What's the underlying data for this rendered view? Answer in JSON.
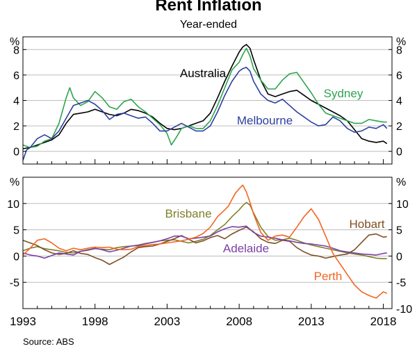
{
  "title": "Rent Inflation",
  "subtitle": "Year-ended",
  "source": "Source:   ABS",
  "chart_data": [
    {
      "type": "line",
      "panel": "top",
      "unit_label": "%",
      "ylim": [
        -1,
        9
      ],
      "yticks": [
        0,
        2,
        4,
        6,
        8
      ],
      "xlim": [
        1993,
        2018.6
      ],
      "series": [
        {
          "name": "Australia",
          "color": "#000000",
          "x": [
            1993.0,
            1993.5,
            1994.0,
            1994.5,
            1995.0,
            1995.5,
            1996.0,
            1996.5,
            1997.0,
            1997.5,
            1998.0,
            1998.5,
            1999.0,
            1999.5,
            2000.0,
            2000.5,
            2001.0,
            2001.5,
            2002.0,
            2002.5,
            2003.0,
            2003.5,
            2004.0,
            2004.5,
            2005.0,
            2005.5,
            2006.0,
            2006.5,
            2007.0,
            2007.5,
            2008.0,
            2008.25,
            2008.5,
            2008.75,
            2009.0,
            2009.5,
            2010.0,
            2010.5,
            2011.0,
            2011.5,
            2012.0,
            2012.5,
            2013.0,
            2013.5,
            2014.0,
            2014.5,
            2015.0,
            2015.5,
            2016.0,
            2016.5,
            2017.0,
            2017.5,
            2018.0,
            2018.25
          ],
          "y": [
            0.2,
            0.3,
            0.5,
            0.7,
            0.9,
            1.3,
            2.2,
            2.9,
            3.0,
            3.1,
            3.3,
            3.1,
            2.9,
            2.8,
            3.0,
            3.3,
            3.2,
            3.0,
            2.7,
            2.2,
            1.8,
            1.7,
            1.8,
            2.0,
            2.2,
            2.4,
            3.0,
            4.2,
            5.5,
            6.7,
            7.8,
            8.2,
            8.4,
            8.1,
            7.2,
            5.6,
            4.5,
            4.3,
            4.5,
            4.7,
            4.8,
            4.4,
            4.0,
            3.7,
            3.4,
            3.1,
            2.8,
            2.4,
            1.7,
            1.0,
            0.8,
            0.7,
            0.8,
            0.6
          ]
        },
        {
          "name": "Sydney",
          "color": "#2ca44e",
          "x": [
            1993.0,
            1993.5,
            1994.0,
            1994.5,
            1995.0,
            1995.5,
            1996.0,
            1996.25,
            1996.5,
            1997.0,
            1997.5,
            1998.0,
            1998.5,
            1999.0,
            1999.5,
            2000.0,
            2000.5,
            2001.0,
            2001.5,
            2002.0,
            2002.5,
            2003.0,
            2003.3,
            2003.7,
            2004.0,
            2004.5,
            2005.0,
            2005.5,
            2006.0,
            2006.5,
            2007.0,
            2007.5,
            2008.0,
            2008.25,
            2008.5,
            2008.75,
            2009.0,
            2009.5,
            2010.0,
            2010.5,
            2011.0,
            2011.5,
            2012.0,
            2012.5,
            2013.0,
            2013.5,
            2014.0,
            2014.5,
            2015.0,
            2015.5,
            2016.0,
            2016.5,
            2017.0,
            2017.5,
            2018.0,
            2018.25
          ],
          "y": [
            0.5,
            0.3,
            0.4,
            0.8,
            1.0,
            2.2,
            4.2,
            5.0,
            4.2,
            3.6,
            3.9,
            4.7,
            4.2,
            3.5,
            3.3,
            3.9,
            4.1,
            3.5,
            3.1,
            2.6,
            2.1,
            1.4,
            0.5,
            1.2,
            1.8,
            2.0,
            1.8,
            1.8,
            2.4,
            3.6,
            5.0,
            6.4,
            7.0,
            7.6,
            8.1,
            7.5,
            6.5,
            5.6,
            4.9,
            4.9,
            5.6,
            6.1,
            6.2,
            5.4,
            4.6,
            3.7,
            3.0,
            2.8,
            2.6,
            2.4,
            2.2,
            2.2,
            2.5,
            2.4,
            2.3,
            2.3
          ]
        },
        {
          "name": "Melbourne",
          "color": "#2c3ea0",
          "x": [
            1993.0,
            1993.25,
            1993.5,
            1994.0,
            1994.5,
            1995.0,
            1995.5,
            1996.0,
            1996.5,
            1997.0,
            1997.5,
            1998.0,
            1998.5,
            1999.0,
            1999.5,
            2000.0,
            2000.5,
            2001.0,
            2001.5,
            2002.0,
            2002.5,
            2003.0,
            2003.5,
            2004.0,
            2004.5,
            2005.0,
            2005.5,
            2006.0,
            2006.5,
            2007.0,
            2007.5,
            2008.0,
            2008.25,
            2008.5,
            2008.75,
            2009.0,
            2009.5,
            2010.0,
            2010.5,
            2011.0,
            2011.5,
            2012.0,
            2012.5,
            2013.0,
            2013.5,
            2014.0,
            2014.5,
            2015.0,
            2015.5,
            2016.0,
            2016.5,
            2017.0,
            2017.5,
            2018.0,
            2018.25
          ],
          "y": [
            -0.7,
            0.1,
            0.3,
            1.0,
            1.3,
            1.0,
            1.6,
            2.6,
            3.6,
            3.8,
            4.0,
            3.7,
            3.2,
            2.5,
            2.9,
            3.0,
            2.8,
            2.6,
            2.7,
            2.2,
            1.6,
            1.6,
            1.9,
            2.2,
            1.9,
            1.6,
            1.6,
            2.0,
            3.1,
            4.4,
            5.5,
            6.3,
            6.5,
            6.6,
            6.3,
            5.5,
            4.5,
            4.0,
            3.8,
            4.1,
            3.6,
            3.1,
            2.7,
            2.3,
            2.0,
            2.1,
            2.7,
            2.4,
            1.8,
            1.5,
            1.6,
            1.9,
            1.8,
            2.1,
            1.8
          ]
        }
      ]
    },
    {
      "type": "line",
      "panel": "bottom",
      "unit_label": "%",
      "ylim": [
        -10,
        15
      ],
      "yticks": [
        -5,
        0,
        5,
        10
      ],
      "ytick_labels_right": [
        -5,
        0,
        5,
        10,
        -10
      ],
      "xlim": [
        1993,
        2018.6
      ],
      "x_tick_labels": [
        "1993",
        "1998",
        "2003",
        "2008",
        "2013",
        "2018"
      ],
      "series": [
        {
          "name": "Brisbane",
          "color": "#7f7f2c",
          "x": [
            1993.0,
            1993.5,
            1994.0,
            1994.5,
            1995.0,
            1995.5,
            1996.0,
            1996.5,
            1997.0,
            1997.5,
            1998.0,
            1998.5,
            1999.0,
            1999.5,
            2000.0,
            2000.5,
            2001.0,
            2001.5,
            2002.0,
            2002.5,
            2003.0,
            2003.5,
            2004.0,
            2004.5,
            2005.0,
            2005.5,
            2006.0,
            2006.5,
            2007.0,
            2007.5,
            2008.0,
            2008.25,
            2008.5,
            2008.75,
            2009.0,
            2009.5,
            2010.0,
            2010.5,
            2011.0,
            2011.5,
            2012.0,
            2012.5,
            2013.0,
            2013.5,
            2014.0,
            2014.5,
            2015.0,
            2015.5,
            2016.0,
            2016.5,
            2017.0,
            2017.5,
            2018.0,
            2018.25
          ],
          "y": [
            1.0,
            1.5,
            1.8,
            1.4,
            1.2,
            1.0,
            0.7,
            0.6,
            0.9,
            1.1,
            1.4,
            1.3,
            1.2,
            1.6,
            1.8,
            1.9,
            2.1,
            2.4,
            2.6,
            2.9,
            3.0,
            3.1,
            2.8,
            2.5,
            2.8,
            3.2,
            3.9,
            5.0,
            6.0,
            7.5,
            8.8,
            9.6,
            10.2,
            9.7,
            8.2,
            5.5,
            3.7,
            3.0,
            3.1,
            3.4,
            3.0,
            2.5,
            2.1,
            1.8,
            1.5,
            1.2,
            0.9,
            0.6,
            0.4,
            0.2,
            -0.1,
            -0.4,
            -0.5,
            -0.5
          ]
        },
        {
          "name": "Hobart",
          "color": "#7f4f22",
          "x": [
            1993.0,
            1993.5,
            1994.0,
            1994.5,
            1995.0,
            1995.5,
            1996.0,
            1996.5,
            1997.0,
            1997.5,
            1998.0,
            1998.5,
            1999.0,
            1999.5,
            2000.0,
            2000.5,
            2001.0,
            2001.5,
            2002.0,
            2002.5,
            2003.0,
            2003.5,
            2004.0,
            2004.5,
            2005.0,
            2005.5,
            2006.0,
            2006.5,
            2007.0,
            2007.5,
            2008.0,
            2008.5,
            2009.0,
            2009.5,
            2010.0,
            2010.5,
            2011.0,
            2011.5,
            2012.0,
            2012.5,
            2013.0,
            2013.5,
            2014.0,
            2014.5,
            2015.0,
            2015.5,
            2016.0,
            2016.5,
            2017.0,
            2017.5,
            2018.0,
            2018.25
          ],
          "y": [
            3.0,
            2.5,
            2.0,
            1.2,
            0.6,
            0.3,
            0.5,
            1.0,
            0.5,
            0.3,
            -0.3,
            -0.8,
            -1.6,
            -0.9,
            -0.2,
            0.8,
            1.6,
            1.8,
            1.9,
            2.3,
            2.8,
            3.3,
            3.9,
            3.2,
            2.5,
            2.9,
            3.5,
            3.9,
            3.3,
            4.2,
            4.9,
            5.5,
            4.6,
            3.3,
            2.6,
            2.4,
            3.0,
            2.8,
            1.6,
            0.8,
            0.2,
            0.0,
            -0.4,
            -0.1,
            0.2,
            0.4,
            1.2,
            2.6,
            4.0,
            4.2,
            3.6,
            3.7
          ]
        },
        {
          "name": "Adelaide",
          "color": "#7b3fa6",
          "x": [
            1993.0,
            1993.5,
            1994.0,
            1994.5,
            1995.0,
            1995.5,
            1996.0,
            1996.5,
            1997.0,
            1997.5,
            1998.0,
            1998.5,
            1999.0,
            1999.5,
            2000.0,
            2000.5,
            2001.0,
            2001.5,
            2002.0,
            2002.5,
            2003.0,
            2003.5,
            2004.0,
            2004.5,
            2005.0,
            2005.5,
            2006.0,
            2006.5,
            2007.0,
            2007.5,
            2008.0,
            2008.5,
            2009.0,
            2009.5,
            2010.0,
            2010.5,
            2011.0,
            2011.5,
            2012.0,
            2012.5,
            2013.0,
            2013.5,
            2014.0,
            2014.5,
            2015.0,
            2015.5,
            2016.0,
            2016.5,
            2017.0,
            2017.5,
            2018.0,
            2018.25
          ],
          "y": [
            0.6,
            0.2,
            0.0,
            -0.4,
            0.1,
            0.6,
            0.4,
            0.2,
            0.9,
            1.2,
            1.5,
            1.2,
            0.8,
            1.1,
            1.5,
            1.9,
            2.0,
            2.3,
            2.6,
            2.9,
            3.3,
            3.8,
            3.8,
            3.3,
            3.4,
            3.6,
            3.8,
            4.6,
            5.2,
            5.6,
            5.5,
            5.7,
            4.5,
            3.8,
            3.6,
            3.4,
            3.1,
            2.9,
            2.6,
            2.4,
            2.3,
            2.1,
            1.9,
            1.5,
            1.0,
            0.8,
            0.6,
            0.4,
            0.3,
            0.2,
            0.5,
            0.6
          ]
        },
        {
          "name": "Perth",
          "color": "#f26522",
          "x": [
            1993.0,
            1993.5,
            1994.0,
            1994.5,
            1995.0,
            1995.5,
            1996.0,
            1996.5,
            1997.0,
            1997.5,
            1998.0,
            1998.5,
            1999.0,
            1999.5,
            2000.0,
            2000.5,
            2001.0,
            2001.5,
            2002.0,
            2002.5,
            2003.0,
            2003.5,
            2004.0,
            2004.5,
            2005.0,
            2005.5,
            2006.0,
            2006.5,
            2007.0,
            2007.25,
            2007.5,
            2007.75,
            2008.0,
            2008.25,
            2008.5,
            2008.75,
            2009.0,
            2009.5,
            2010.0,
            2010.5,
            2011.0,
            2011.5,
            2012.0,
            2012.5,
            2013.0,
            2013.5,
            2014.0,
            2014.5,
            2015.0,
            2015.5,
            2016.0,
            2016.5,
            2017.0,
            2017.5,
            2018.0,
            2018.25
          ],
          "y": [
            0.2,
            1.5,
            3.0,
            3.3,
            2.5,
            1.5,
            1.0,
            1.5,
            1.2,
            1.5,
            1.7,
            1.6,
            1.7,
            1.3,
            1.2,
            1.3,
            1.8,
            2.0,
            2.2,
            2.3,
            2.5,
            2.7,
            2.9,
            3.2,
            3.6,
            4.3,
            5.5,
            7.5,
            8.8,
            9.5,
            10.8,
            12.0,
            12.8,
            13.5,
            12.2,
            10.2,
            8.0,
            4.5,
            3.0,
            3.8,
            4.0,
            3.6,
            5.5,
            7.5,
            9.0,
            7.0,
            3.8,
            0.5,
            -1.5,
            -3.5,
            -5.5,
            -6.8,
            -7.5,
            -8.0,
            -6.8,
            -7.1
          ]
        }
      ]
    }
  ]
}
